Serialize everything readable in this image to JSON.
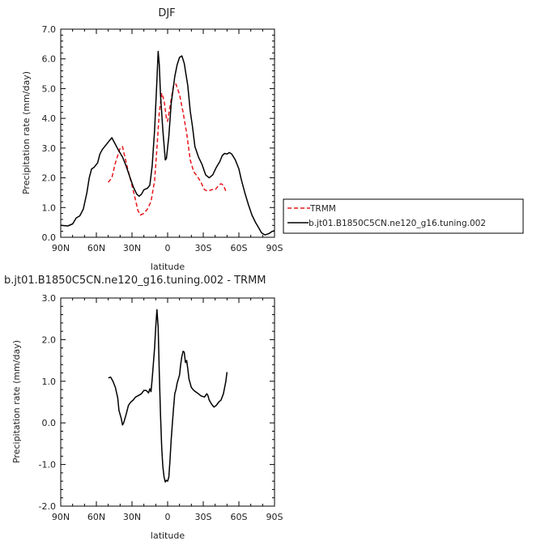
{
  "chart_data": [
    {
      "type": "line",
      "title": "DJF",
      "xlabel": "latitude",
      "ylabel": "Precipitation rate (mm/day)",
      "xlim": [
        90,
        -90
      ],
      "ylim": [
        0,
        7
      ],
      "x_ticks": [
        {
          "value": 90,
          "label": "90N"
        },
        {
          "value": 60,
          "label": "60N"
        },
        {
          "value": 30,
          "label": "30N"
        },
        {
          "value": 0,
          "label": "0"
        },
        {
          "value": -30,
          "label": "30S"
        },
        {
          "value": -60,
          "label": "60S"
        },
        {
          "value": -90,
          "label": "90S"
        }
      ],
      "y_ticks": [
        {
          "value": 0,
          "label": "0.0"
        },
        {
          "value": 1,
          "label": "1.0"
        },
        {
          "value": 2,
          "label": "2.0"
        },
        {
          "value": 3,
          "label": "3.0"
        },
        {
          "value": 4,
          "label": "4.0"
        },
        {
          "value": 5,
          "label": "5.0"
        },
        {
          "value": 6,
          "label": "6.0"
        },
        {
          "value": 7,
          "label": "7.0"
        }
      ],
      "legend": "outside-right",
      "series": [
        {
          "name": "TRMM",
          "color": "#e8161b",
          "dash": "dashed",
          "points": [
            [
              50,
              1.85
            ],
            [
              47,
              2.0
            ],
            [
              44,
              2.5
            ],
            [
              40,
              3.0
            ],
            [
              38,
              3.05
            ],
            [
              36,
              2.7
            ],
            [
              33,
              2.2
            ],
            [
              30,
              1.75
            ],
            [
              27,
              1.25
            ],
            [
              25,
              0.9
            ],
            [
              23,
              0.75
            ],
            [
              20,
              0.8
            ],
            [
              17,
              0.95
            ],
            [
              14,
              1.2
            ],
            [
              11,
              1.9
            ],
            [
              9,
              3.0
            ],
            [
              7,
              4.2
            ],
            [
              5,
              4.85
            ],
            [
              3,
              4.6
            ],
            [
              1,
              4.0
            ],
            [
              0,
              3.9
            ],
            [
              -2,
              4.4
            ],
            [
              -5,
              5.1
            ],
            [
              -7,
              5.15
            ],
            [
              -10,
              4.8
            ],
            [
              -13,
              4.2
            ],
            [
              -16,
              3.5
            ],
            [
              -19,
              2.6
            ],
            [
              -22,
              2.2
            ],
            [
              -25,
              2.05
            ],
            [
              -28,
              1.85
            ],
            [
              -31,
              1.6
            ],
            [
              -34,
              1.55
            ],
            [
              -37,
              1.6
            ],
            [
              -40,
              1.6
            ],
            [
              -43,
              1.75
            ],
            [
              -45,
              1.8
            ],
            [
              -47,
              1.75
            ],
            [
              -49,
              1.55
            ]
          ]
        },
        {
          "name": "b.jt01.B1850C5CN.ne120_g16.tuning.002",
          "color": "#000000",
          "dash": "solid",
          "points": [
            [
              90,
              0.4
            ],
            [
              84,
              0.38
            ],
            [
              80,
              0.45
            ],
            [
              77,
              0.65
            ],
            [
              74,
              0.72
            ],
            [
              71,
              0.95
            ],
            [
              68,
              1.5
            ],
            [
              66,
              2.0
            ],
            [
              64,
              2.3
            ],
            [
              62,
              2.35
            ],
            [
              59,
              2.5
            ],
            [
              57,
              2.8
            ],
            [
              55,
              2.95
            ],
            [
              52,
              3.1
            ],
            [
              49,
              3.25
            ],
            [
              47,
              3.35
            ],
            [
              45,
              3.2
            ],
            [
              43,
              3.05
            ],
            [
              41,
              2.9
            ],
            [
              38,
              2.7
            ],
            [
              35,
              2.4
            ],
            [
              32,
              2.05
            ],
            [
              29,
              1.7
            ],
            [
              26,
              1.45
            ],
            [
              24,
              1.38
            ],
            [
              22,
              1.45
            ],
            [
              20,
              1.6
            ],
            [
              17,
              1.65
            ],
            [
              15,
              1.75
            ],
            [
              13,
              2.4
            ],
            [
              11,
              3.6
            ],
            [
              9,
              5.3
            ],
            [
              8,
              6.25
            ],
            [
              7,
              5.8
            ],
            [
              6,
              4.8
            ],
            [
              4,
              3.6
            ],
            [
              2,
              2.6
            ],
            [
              1,
              2.65
            ],
            [
              -1,
              3.4
            ],
            [
              -3,
              4.5
            ],
            [
              -6,
              5.4
            ],
            [
              -8,
              5.8
            ],
            [
              -10,
              6.05
            ],
            [
              -12,
              6.1
            ],
            [
              -14,
              5.85
            ],
            [
              -17,
              5.1
            ],
            [
              -19,
              4.25
            ],
            [
              -21,
              3.7
            ],
            [
              -23,
              3.05
            ],
            [
              -26,
              2.7
            ],
            [
              -29,
              2.45
            ],
            [
              -32,
              2.1
            ],
            [
              -35,
              2.0
            ],
            [
              -38,
              2.1
            ],
            [
              -41,
              2.35
            ],
            [
              -44,
              2.55
            ],
            [
              -46,
              2.75
            ],
            [
              -48,
              2.82
            ],
            [
              -50,
              2.8
            ],
            [
              -52,
              2.85
            ],
            [
              -54,
              2.8
            ],
            [
              -57,
              2.6
            ],
            [
              -60,
              2.3
            ],
            [
              -62,
              1.95
            ],
            [
              -65,
              1.5
            ],
            [
              -68,
              1.1
            ],
            [
              -71,
              0.75
            ],
            [
              -74,
              0.5
            ],
            [
              -77,
              0.3
            ],
            [
              -79,
              0.15
            ],
            [
              -82,
              0.08
            ],
            [
              -85,
              0.12
            ],
            [
              -88,
              0.2
            ],
            [
              -90,
              0.22
            ]
          ]
        }
      ]
    },
    {
      "type": "line",
      "title": "b.jt01.B1850C5CN.ne120_g16.tuning.002 - TRMM",
      "xlabel": "latitude",
      "ylabel": "Precipitation rate (mm/day)",
      "xlim": [
        90,
        -90
      ],
      "ylim": [
        -2,
        3
      ],
      "x_ticks": [
        {
          "value": 90,
          "label": "90N"
        },
        {
          "value": 60,
          "label": "60N"
        },
        {
          "value": 30,
          "label": "30N"
        },
        {
          "value": 0,
          "label": "0"
        },
        {
          "value": -30,
          "label": "30S"
        },
        {
          "value": -60,
          "label": "60S"
        },
        {
          "value": -90,
          "label": "90S"
        }
      ],
      "y_ticks": [
        {
          "value": -2,
          "label": "-2.0"
        },
        {
          "value": -1,
          "label": "-1.0"
        },
        {
          "value": 0,
          "label": "0.0"
        },
        {
          "value": 1,
          "label": "1.0"
        },
        {
          "value": 2,
          "label": "2.0"
        },
        {
          "value": 3,
          "label": "3.0"
        }
      ],
      "series": [
        {
          "color": "#000000",
          "dash": "solid",
          "points": [
            [
              50,
              1.08
            ],
            [
              48,
              1.1
            ],
            [
              46,
              1.0
            ],
            [
              44,
              0.85
            ],
            [
              42,
              0.6
            ],
            [
              41,
              0.3
            ],
            [
              39,
              0.1
            ],
            [
              38,
              -0.05
            ],
            [
              37,
              0.0
            ],
            [
              35,
              0.2
            ],
            [
              33,
              0.42
            ],
            [
              31,
              0.5
            ],
            [
              29,
              0.55
            ],
            [
              27,
              0.62
            ],
            [
              25,
              0.65
            ],
            [
              22,
              0.7
            ],
            [
              20,
              0.78
            ],
            [
              18,
              0.78
            ],
            [
              16,
              0.72
            ],
            [
              15,
              0.82
            ],
            [
              14,
              0.75
            ],
            [
              13,
              1.05
            ],
            [
              11,
              1.8
            ],
            [
              10,
              2.3
            ],
            [
              9,
              2.72
            ],
            [
              8,
              2.3
            ],
            [
              7,
              1.2
            ],
            [
              6,
              0.2
            ],
            [
              5,
              -0.6
            ],
            [
              4,
              -1.05
            ],
            [
              3,
              -1.3
            ],
            [
              2,
              -1.42
            ],
            [
              1,
              -1.38
            ],
            [
              0,
              -1.4
            ],
            [
              -1,
              -1.3
            ],
            [
              -2,
              -0.9
            ],
            [
              -3,
              -0.4
            ],
            [
              -4,
              0.0
            ],
            [
              -5,
              0.35
            ],
            [
              -6,
              0.7
            ],
            [
              -7,
              0.8
            ],
            [
              -8,
              0.95
            ],
            [
              -9,
              1.05
            ],
            [
              -10,
              1.15
            ],
            [
              -11,
              1.4
            ],
            [
              -12,
              1.6
            ],
            [
              -13,
              1.72
            ],
            [
              -14,
              1.7
            ],
            [
              -15,
              1.45
            ],
            [
              -16,
              1.5
            ],
            [
              -17,
              1.3
            ],
            [
              -18,
              1.05
            ],
            [
              -20,
              0.85
            ],
            [
              -22,
              0.78
            ],
            [
              -25,
              0.72
            ],
            [
              -28,
              0.65
            ],
            [
              -31,
              0.62
            ],
            [
              -33,
              0.7
            ],
            [
              -34,
              0.65
            ],
            [
              -35,
              0.55
            ],
            [
              -37,
              0.45
            ],
            [
              -39,
              0.38
            ],
            [
              -41,
              0.42
            ],
            [
              -43,
              0.5
            ],
            [
              -45,
              0.55
            ],
            [
              -47,
              0.7
            ],
            [
              -48,
              0.85
            ],
            [
              -49,
              1.0
            ],
            [
              -50,
              1.22
            ]
          ]
        }
      ]
    }
  ]
}
